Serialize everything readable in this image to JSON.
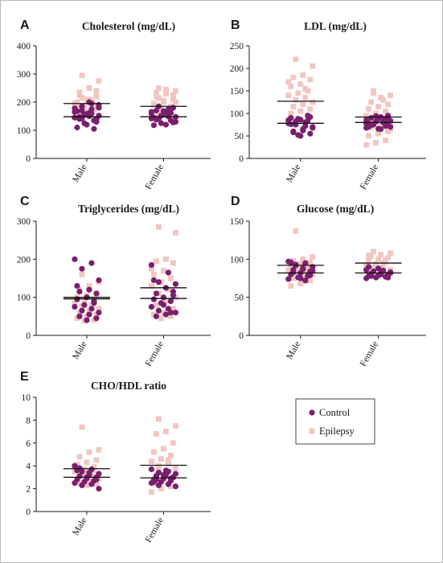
{
  "colors": {
    "control": "#7a1f6e",
    "epilepsy": "#f2c6c0",
    "axis": "#1a1a1a",
    "frame": "#b8b8b8"
  },
  "legend": [
    {
      "label": "Control",
      "marker": "circle",
      "color": "#7a1f6e"
    },
    {
      "label": "Epilepsy",
      "marker": "square",
      "color": "#f2c6c0"
    }
  ],
  "chart_data": [
    {
      "type": "scatter",
      "letter": "A",
      "title": "Cholesterol (mg/dL)",
      "categories": [
        "Male",
        "Female"
      ],
      "ylim": [
        0,
        400
      ],
      "yticks": [
        0,
        100,
        200,
        300,
        400
      ],
      "series": [
        {
          "name": "Control",
          "values": [
            [
              145,
              160,
              170,
              180,
              150,
              140,
              130,
              120,
              110,
              105,
              155,
              165,
              175,
              185,
              190,
              200,
              148,
              138,
              158,
              168,
              135,
              125,
              178,
              195,
              142,
              152,
              162
            ],
            [
              160,
              150,
              140,
              130,
              120,
              170,
              180,
              155,
              145,
              135,
              125,
              165,
              175,
              185,
              148,
              158,
              138,
              128,
              168,
              118,
              162,
              152,
              142
            ]
          ]
        },
        {
          "name": "Epilepsy",
          "values": [
            [
              295,
              275,
              250,
              235,
              220,
              210,
              200,
              190,
              180,
              170,
              160,
              155,
              150,
              210,
              225,
              240,
              200,
              185,
              175,
              165,
              195,
              205,
              215
            ],
            [
              250,
              240,
              230,
              220,
              210,
              200,
              195,
              185,
              175,
              165,
              160,
              150,
              140,
              245,
              235,
              225,
              205,
              190,
              180,
              170,
              155,
              145,
              215,
              200
            ]
          ]
        }
      ],
      "mean_lines": [
        [
          195,
          148
        ],
        [
          185,
          148
        ]
      ]
    },
    {
      "type": "scatter",
      "letter": "B",
      "title": "LDL (mg/dL)",
      "categories": [
        "Male",
        "Female"
      ],
      "ylim": [
        0,
        250
      ],
      "yticks": [
        0,
        50,
        100,
        150,
        200,
        250
      ],
      "series": [
        {
          "name": "Control",
          "values": [
            [
              85,
              80,
              75,
              70,
              65,
              60,
              55,
              50,
              90,
              95,
              88,
              78,
              72,
              82,
              68,
              62,
              58,
              92,
              86,
              76,
              84,
              52
            ],
            [
              85,
              80,
              75,
              70,
              65,
              90,
              95,
              88,
              78,
              72,
              82,
              68,
              86,
              76,
              84,
              92,
              74,
              80,
              66,
              70,
              88,
              94,
              78
            ]
          ]
        },
        {
          "name": "Epilepsy",
          "values": [
            [
              220,
              205,
              185,
              180,
              175,
              165,
              160,
              150,
              145,
              140,
              135,
              130,
              125,
              120,
              115,
              110,
              105,
              100,
              95,
              88,
              170,
              155
            ],
            [
              150,
              140,
              135,
              125,
              120,
              115,
              110,
              105,
              100,
              95,
              90,
              85,
              80,
              75,
              70,
              60,
              55,
              50,
              40,
              35,
              30,
              130,
              145,
              65
            ]
          ]
        }
      ],
      "mean_lines": [
        [
          127,
          78
        ],
        [
          92,
          80
        ]
      ]
    },
    {
      "type": "scatter",
      "letter": "C",
      "title": "Triglycerides (mg/dL)",
      "categories": [
        "Male",
        "Female"
      ],
      "ylim": [
        0,
        300
      ],
      "yticks": [
        0,
        100,
        200,
        300
      ],
      "series": [
        {
          "name": "Control",
          "values": [
            [
              200,
              190,
              175,
              145,
              120,
              115,
              110,
              100,
              95,
              90,
              80,
              75,
              70,
              65,
              60,
              55,
              50,
              45,
              40,
              130,
              85
            ],
            [
              185,
              165,
              140,
              135,
              125,
              110,
              105,
              100,
              95,
              90,
              85,
              75,
              70,
              65,
              60,
              55,
              50,
              115,
              80,
              145,
              60
            ]
          ]
        },
        {
          "name": "Epilepsy",
          "values": [
            [
              160,
              140,
              130,
              120,
              110,
              105,
              100,
              95,
              90,
              85,
              80,
              75,
              70,
              65,
              60,
              55,
              50,
              45,
              40,
              38
            ],
            [
              285,
              270,
              200,
              195,
              190,
              170,
              160,
              150,
              140,
              130,
              120,
              110,
              100,
              90,
              80,
              70,
              60,
              55,
              50,
              45,
              175
            ]
          ]
        }
      ],
      "mean_lines": [
        [
          100,
          96
        ],
        [
          125,
          97
        ]
      ]
    },
    {
      "type": "scatter",
      "letter": "D",
      "title": "Glucose (mg/dL)",
      "categories": [
        "Male",
        "Female"
      ],
      "ylim": [
        0,
        150
      ],
      "yticks": [
        0,
        50,
        100,
        150
      ],
      "series": [
        {
          "name": "Control",
          "values": [
            [
              97,
              95,
              93,
              90,
              88,
              86,
              84,
              82,
              80,
              78,
              76,
              74,
              72,
              92,
              85,
              87,
              83,
              79,
              75,
              96
            ],
            [
              86,
              85,
              84,
              83,
              82,
              81,
              80,
              79,
              78,
              77,
              76,
              75,
              85,
              84,
              82,
              80,
              78,
              76,
              88,
              90
            ]
          ]
        },
        {
          "name": "Epilepsy",
          "values": [
            [
              137,
              103,
              100,
              98,
              96,
              94,
              92,
              90,
              88,
              86,
              84,
              82,
              80,
              78,
              75,
              72,
              68,
              65,
              95,
              85
            ],
            [
              110,
              108,
              106,
              104,
              102,
              100,
              98,
              96,
              94,
              92,
              90,
              88,
              86,
              84,
              82,
              80,
              78,
              105,
              99,
              93,
              87,
              95
            ]
          ]
        }
      ],
      "mean_lines": [
        [
          92,
          82
        ],
        [
          95,
          82
        ]
      ]
    },
    {
      "type": "scatter",
      "letter": "E",
      "title": "CHO/HDL ratio",
      "categories": [
        "Male",
        "Female"
      ],
      "ylim": [
        0,
        10
      ],
      "yticks": [
        0,
        2,
        4,
        6,
        8,
        10
      ],
      "series": [
        {
          "name": "Control",
          "values": [
            [
              4.0,
              3.7,
              3.5,
              3.3,
              3.2,
              3.1,
              3.0,
              2.9,
              2.8,
              2.7,
              2.6,
              2.5,
              2.4,
              2.3,
              2.0,
              3.4,
              3.8,
              2.8,
              3.0,
              3.6
            ],
            [
              3.7,
              3.5,
              3.4,
              3.3,
              3.2,
              3.1,
              3.0,
              2.9,
              2.8,
              2.7,
              2.6,
              2.5,
              2.4,
              2.3,
              2.2,
              3.6,
              2.8,
              3.0,
              3.2,
              2.6,
              2.9
            ]
          ]
        },
        {
          "name": "Epilepsy",
          "values": [
            [
              7.4,
              5.4,
              5.2,
              4.8,
              4.5,
              4.3,
              4.1,
              3.9,
              3.7,
              3.5,
              3.3,
              3.1,
              2.9,
              2.7,
              2.5,
              2.4,
              2.3,
              4.0,
              3.6,
              3.2
            ],
            [
              8.1,
              7.5,
              7.0,
              6.8,
              6.0,
              5.5,
              5.2,
              4.9,
              4.6,
              4.4,
              4.2,
              4.0,
              3.8,
              3.5,
              3.2,
              3.0,
              2.8,
              2.5,
              2.2,
              2.0,
              1.7,
              4.5,
              3.7
            ]
          ]
        }
      ],
      "mean_lines": [
        [
          3.75,
          3.0
        ],
        [
          4.05,
          2.95
        ]
      ]
    }
  ]
}
